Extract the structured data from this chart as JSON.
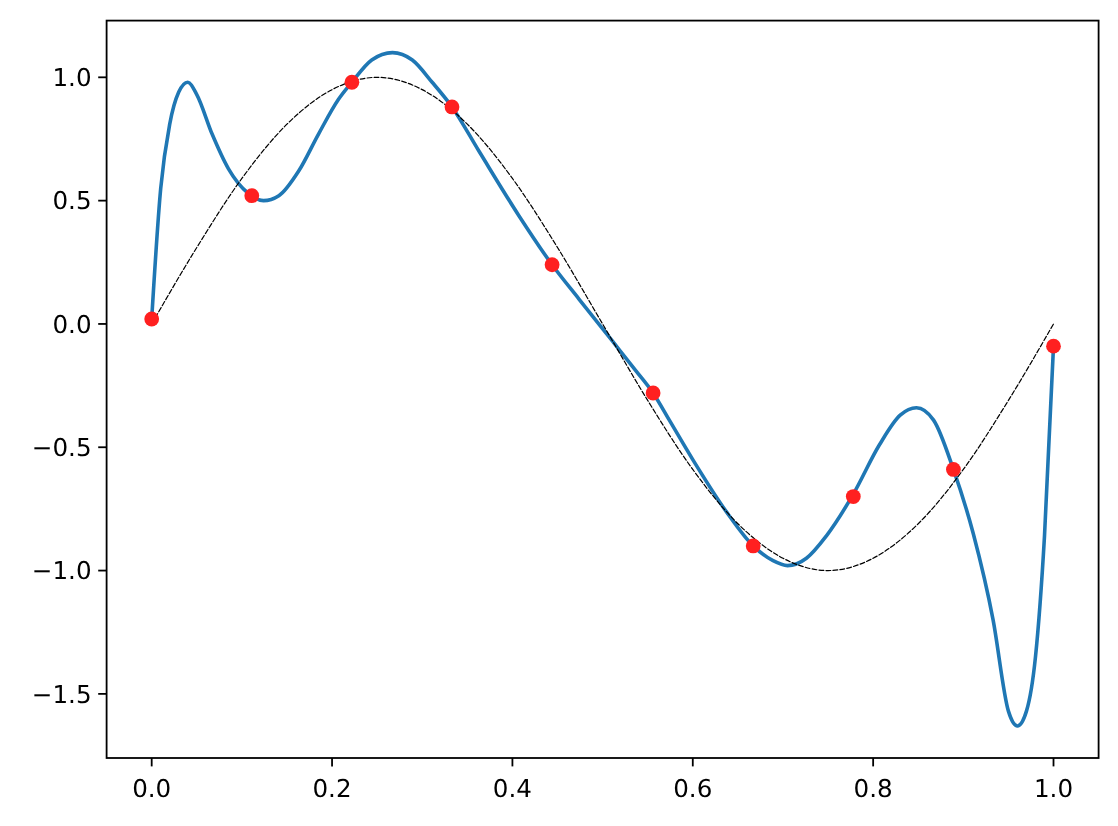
{
  "chart_data": {
    "type": "line",
    "xlim": [
      -0.05,
      1.05
    ],
    "ylim": [
      -1.76,
      1.23
    ],
    "xticks": [
      {
        "value": 0,
        "label": "0.0"
      },
      0.2,
      0.4,
      0.6,
      0.8,
      {
        "value": 1,
        "label": "1.0"
      }
    ],
    "yticks": [
      {
        "value": -1.5,
        "label": "−1.5"
      },
      {
        "value": -1,
        "label": "−1.0"
      },
      {
        "value": -0.5,
        "label": "−0.5"
      },
      {
        "value": 0,
        "label": "0.0"
      },
      0.5,
      {
        "value": 1,
        "label": "1.0"
      }
    ],
    "series": [
      {
        "color": "#1f77b4",
        "line_style": "solid",
        "x": [
          0,
          0.01,
          0.02,
          0.03,
          0.04,
          0.05,
          0.067,
          0.085,
          0.107,
          0.124,
          0.141,
          0.163,
          0.185,
          0.207,
          0.222,
          0.244,
          0.267,
          0.289,
          0.311,
          0.333,
          0.363,
          0.407,
          0.444,
          0.474,
          0.511,
          0.537,
          0.556,
          0.574,
          0.6,
          0.637,
          0.667,
          0.689,
          0.705,
          0.726,
          0.748,
          0.778,
          0.807,
          0.83,
          0.848,
          0.867,
          0.889,
          0.911,
          0.933,
          0.95,
          0.96,
          0.97,
          0.98,
          0.99,
          1
        ],
        "values": [
          0.02,
          0.55,
          0.81,
          0.94,
          0.98,
          0.93,
          0.77,
          0.63,
          0.53,
          0.5,
          0.52,
          0.62,
          0.77,
          0.91,
          0.98,
          1.07,
          1.1,
          1.07,
          0.98,
          0.88,
          0.7,
          0.44,
          0.24,
          0.1,
          -0.07,
          -0.19,
          -0.28,
          -0.39,
          -0.55,
          -0.76,
          -0.9,
          -0.96,
          -0.98,
          -0.95,
          -0.86,
          -0.69,
          -0.49,
          -0.37,
          -0.34,
          -0.39,
          -0.59,
          -0.85,
          -1.2,
          -1.57,
          -1.63,
          -1.57,
          -1.35,
          -0.86,
          -0.09
        ]
      },
      {
        "color": "#000000",
        "line_style": "dashed",
        "x": [
          0,
          0.05,
          0.1,
          0.15,
          0.2,
          0.25,
          0.3,
          0.35,
          0.4,
          0.45,
          0.5,
          0.55,
          0.6,
          0.65,
          0.7,
          0.75,
          0.8,
          0.85,
          0.9,
          0.95,
          1
        ],
        "values": [
          0,
          0.31,
          0.59,
          0.81,
          0.95,
          1,
          0.95,
          0.81,
          0.59,
          0.31,
          0,
          -0.31,
          -0.59,
          -0.81,
          -0.95,
          -1,
          -0.95,
          -0.81,
          -0.59,
          -0.31,
          0
        ]
      },
      {
        "type": "scatter",
        "color": "#ff2020",
        "marker": "circle",
        "x": [
          0,
          0.111,
          0.222,
          0.333,
          0.444,
          0.556,
          0.667,
          0.778,
          0.889,
          1
        ],
        "values": [
          0.02,
          0.52,
          0.98,
          0.88,
          0.24,
          -0.28,
          -0.9,
          -0.7,
          -0.59,
          -0.09
        ]
      }
    ]
  }
}
